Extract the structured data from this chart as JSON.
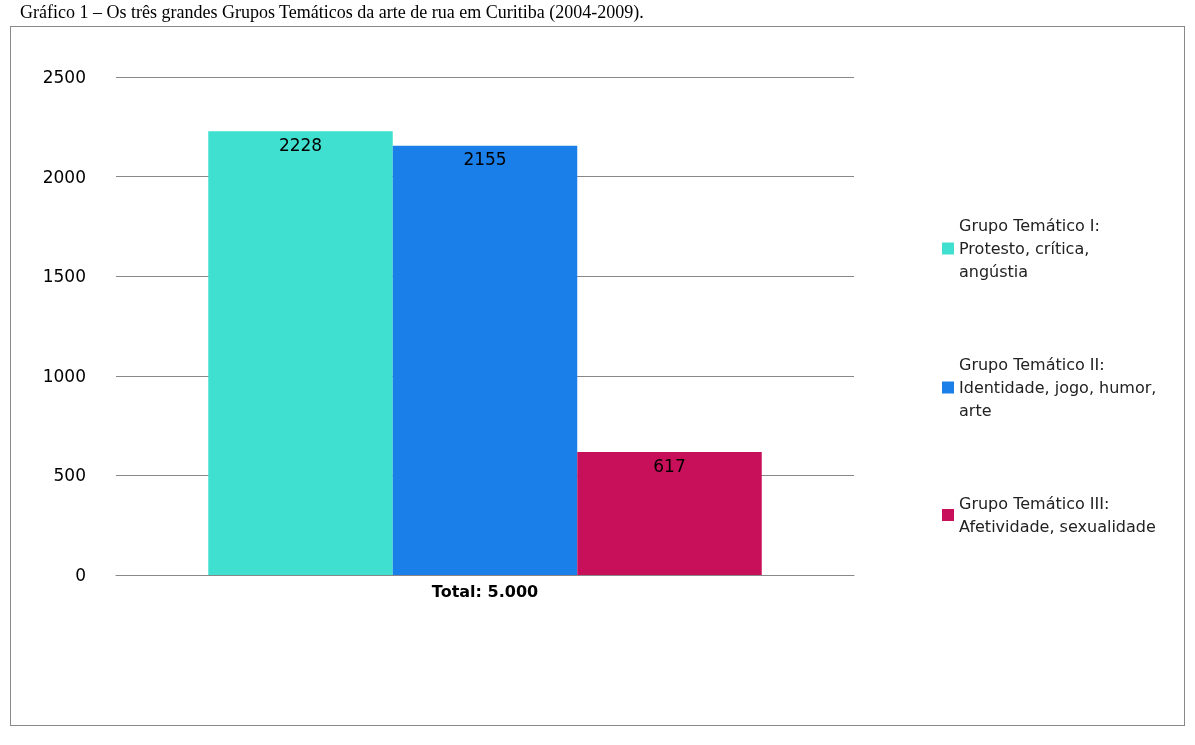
{
  "chart_data": {
    "type": "bar",
    "title": "Gráfico 1 – Os três grandes Grupos Temáticos da arte de rua em Curitiba (2004-2009).",
    "categories": [
      "Total: 5.000"
    ],
    "series": [
      {
        "name": "Grupo Temático I: Protesto, crítica, angústia",
        "color": "#40e0d0",
        "values": [
          2228
        ]
      },
      {
        "name": "Grupo Temático II: Identidade, jogo, humor, arte",
        "color": "#1a7fe8",
        "values": [
          2155
        ]
      },
      {
        "name": "Grupo Temático III: Afetividade, sexualidade",
        "color": "#c8105a",
        "values": [
          617
        ]
      }
    ],
    "ylim": [
      0,
      2500
    ],
    "yticks": [
      0,
      500,
      1000,
      1500,
      2000,
      2500
    ],
    "grid": "y",
    "legend": "right",
    "data_labels": true
  }
}
